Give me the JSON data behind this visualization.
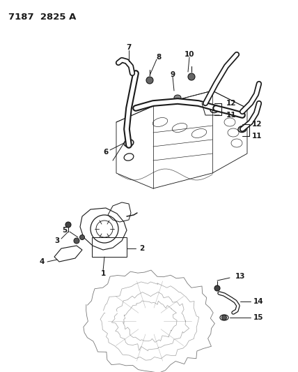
{
  "title": "7187  2825 A",
  "background_color": "#ffffff",
  "line_color": "#1a1a1a",
  "figsize": [
    4.28,
    5.33
  ],
  "dpi": 100,
  "label_fontsize": 7.5,
  "title_fontsize": 9.5
}
